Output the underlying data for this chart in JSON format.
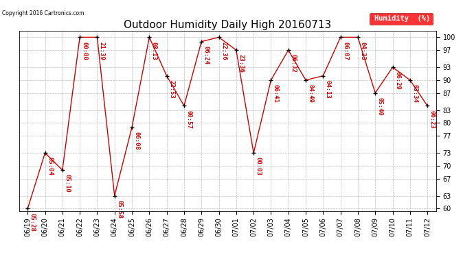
{
  "title": "Outdoor Humidity Daily High 20160713",
  "copyright": "Copyright 2016 Cartronics.com",
  "legend_label": "Humidity  (%)",
  "ylim": [
    59.5,
    101.5
  ],
  "yticks": [
    60,
    63,
    67,
    70,
    73,
    77,
    80,
    83,
    87,
    90,
    93,
    97,
    100
  ],
  "dates": [
    "06/19",
    "06/20",
    "06/21",
    "06/22",
    "06/23",
    "06/24",
    "06/25",
    "06/26",
    "06/27",
    "06/28",
    "06/29",
    "06/30",
    "07/01",
    "07/02",
    "07/03",
    "07/04",
    "07/05",
    "07/06",
    "07/07",
    "07/08",
    "07/09",
    "07/10",
    "07/11",
    "07/12"
  ],
  "values": [
    60,
    73,
    69,
    100,
    100,
    63,
    79,
    100,
    91,
    84,
    99,
    100,
    97,
    73,
    90,
    97,
    90,
    91,
    100,
    100,
    87,
    93,
    90,
    84
  ],
  "times": [
    "05:28",
    "05:04",
    "05:10",
    "00:00",
    "21:39",
    "05:58",
    "06:08",
    "08:13",
    "22:53",
    "00:57",
    "06:24",
    "22:36",
    "23:36",
    "00:03",
    "06:41",
    "06:32",
    "04:49",
    "04:13",
    "06:07",
    "04:23",
    "05:40",
    "06:29",
    "03:34",
    "06:23"
  ],
  "line_color": "#cc0000",
  "marker_color": "#000000",
  "text_color": "#cc0000",
  "bg_color": "#ffffff",
  "grid_color": "#bbbbbb",
  "title_fontsize": 11,
  "tick_fontsize": 7,
  "annotation_fontsize": 6.5
}
